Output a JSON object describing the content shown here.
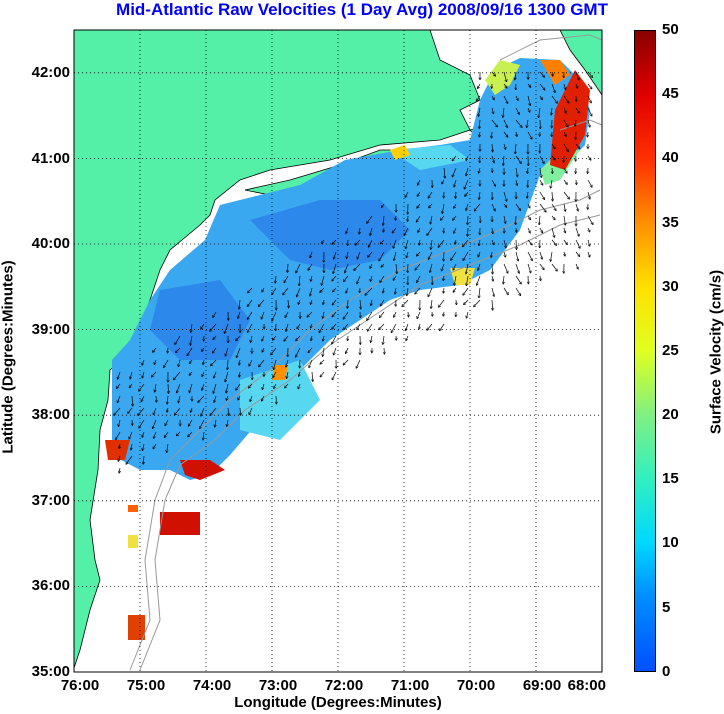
{
  "title": "Mid-Atlantic Raw Velocities (1 Day Avg) 2008/09/16 1300 GMT",
  "x_axis": {
    "label": "Longitude (Degrees:Minutes)",
    "ticks": [
      "76:00",
      "75:00",
      "74:00",
      "73:00",
      "72:00",
      "71:00",
      "70:00",
      "69:00",
      "68:00"
    ]
  },
  "y_axis": {
    "label": "Latitude (Degrees:Minutes)",
    "ticks": [
      "42:00",
      "41:00",
      "40:00",
      "39:00",
      "38:00",
      "37:00",
      "36:00",
      "35:00"
    ]
  },
  "colorbar": {
    "label": "Surface Velocity (cm/s)",
    "ticks": [
      "50",
      "45",
      "40",
      "35",
      "30",
      "25",
      "20",
      "15",
      "10",
      "5",
      "0"
    ],
    "range": [
      0,
      50
    ]
  },
  "colors": {
    "land": "#55f0a8",
    "title": "#0000ff",
    "bathymetry": "#999999",
    "current_field_dominant": "#3aa0f0"
  },
  "chart_data": {
    "type": "heatmap",
    "title": "Mid-Atlantic Raw Velocities (1 Day Avg) 2008/09/16 1300 GMT",
    "xlabel": "Longitude (Degrees:Minutes)",
    "ylabel": "Latitude (Degrees:Minutes)",
    "xlim": [
      -76.0,
      -68.0
    ],
    "ylim": [
      35.0,
      42.5
    ],
    "value_label": "Surface Velocity (cm/s)",
    "value_range": [
      0,
      50
    ],
    "grid": true
  }
}
